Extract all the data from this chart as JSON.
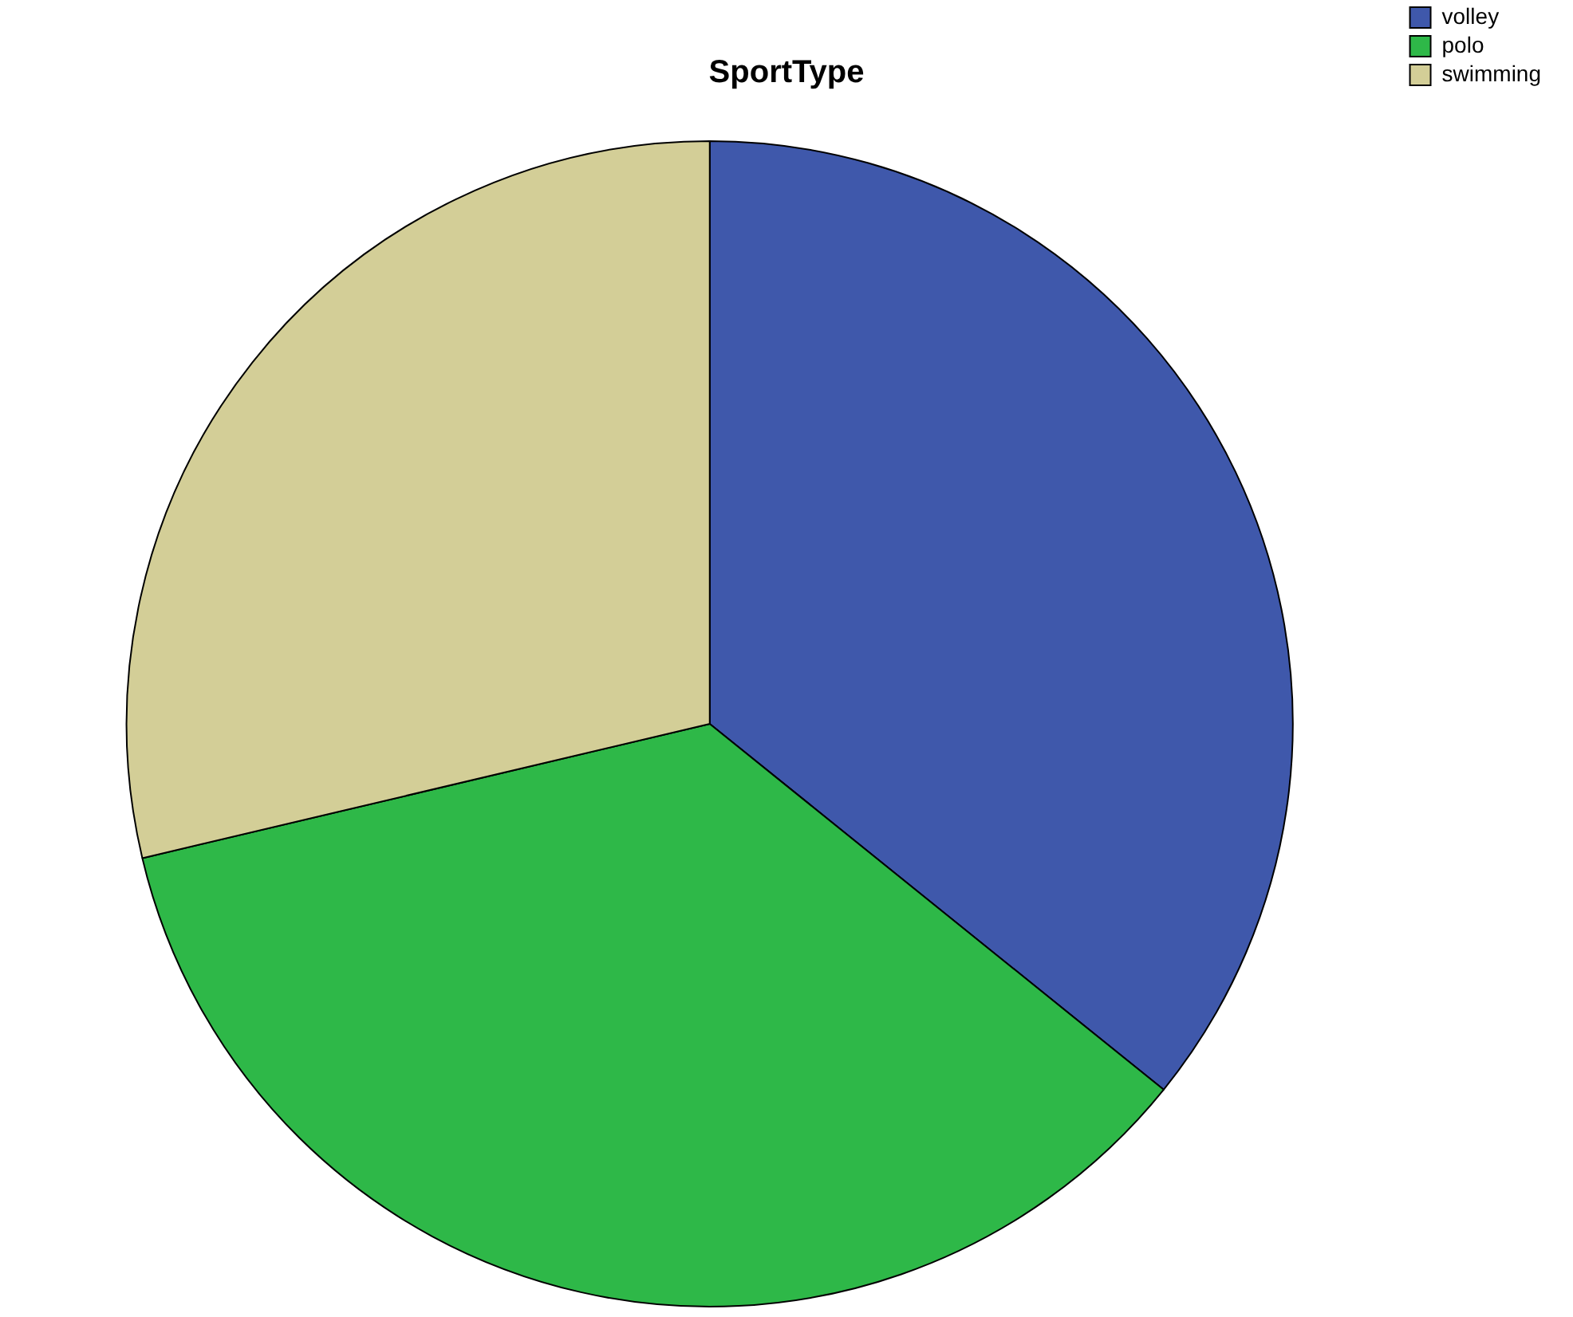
{
  "chart_data": {
    "type": "pie",
    "title": "SportType",
    "categories": [
      "volley",
      "polo",
      "swimming"
    ],
    "values": [
      35.8,
      35.5,
      28.7
    ],
    "colors": [
      "#3f58ab",
      "#2eb848",
      "#d3ce97"
    ],
    "legend": "top right"
  }
}
